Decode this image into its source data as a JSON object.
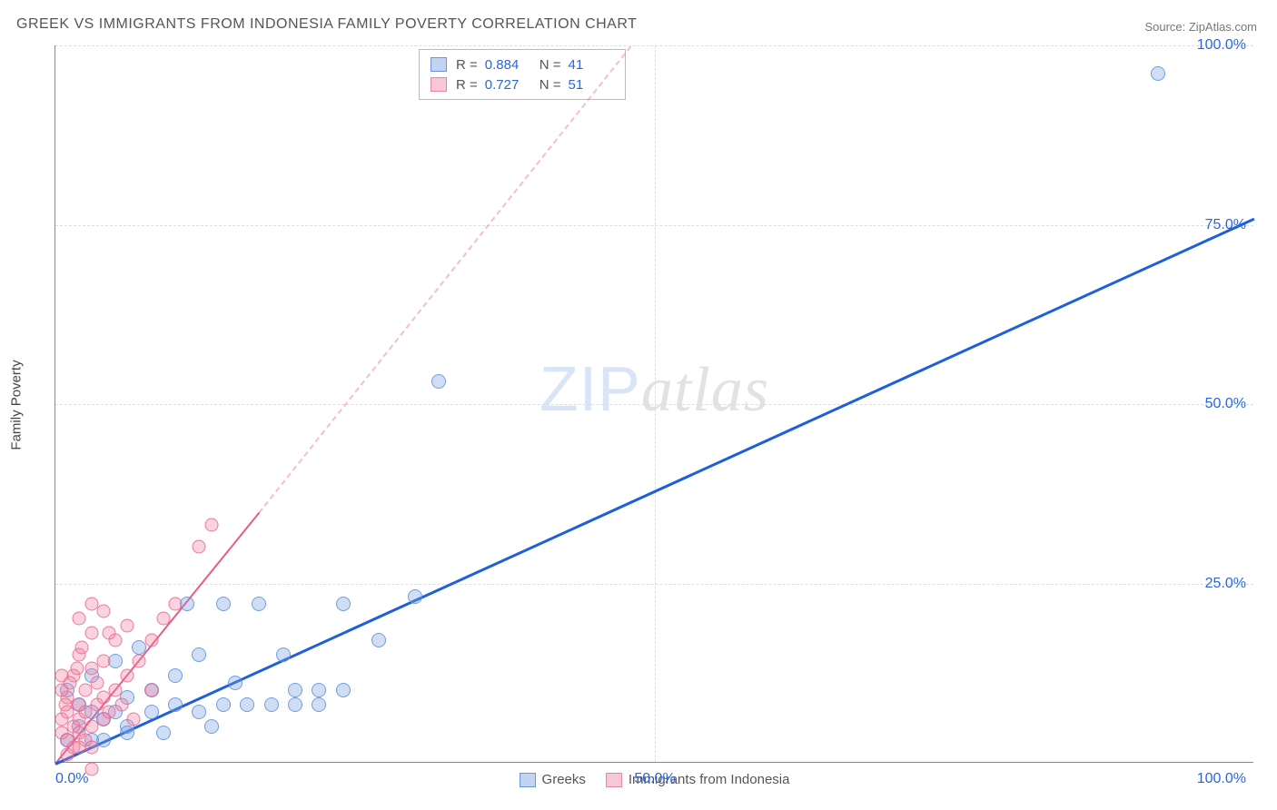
{
  "title": "GREEK VS IMMIGRANTS FROM INDONESIA FAMILY POVERTY CORRELATION CHART",
  "source": "Source: ZipAtlas.com",
  "ylabel": "Family Poverty",
  "watermark": {
    "left": "ZIP",
    "right": "atlas"
  },
  "chart": {
    "type": "scatter",
    "xlim": [
      0,
      100
    ],
    "ylim": [
      0,
      100
    ],
    "background_color": "#ffffff",
    "grid_color": "#dddddd",
    "grid_style": "dashed",
    "axis_color": "#888888",
    "xticks": [
      0,
      50,
      100
    ],
    "yticks": [
      25,
      50,
      75,
      100
    ],
    "xtick_labels": [
      "0.0%",
      "50.0%",
      "100.0%"
    ],
    "ytick_labels": [
      "25.0%",
      "50.0%",
      "75.0%",
      "100.0%"
    ],
    "tick_label_color": "#2b66d9",
    "tick_label_fontsize": 16,
    "marker_size": 16,
    "series": [
      {
        "name": "Greeks",
        "color_fill": "rgba(120,160,225,0.35)",
        "color_stroke": "rgba(90,140,215,0.8)",
        "trend_color": "#1f5fd9",
        "trend_width": 3,
        "trend": {
          "x1": 0,
          "y1": 0,
          "x2": 100,
          "y2": 76
        },
        "R": "0.884",
        "N": "41",
        "points": [
          [
            92,
            96
          ],
          [
            32,
            53
          ],
          [
            1,
            3
          ],
          [
            2,
            5
          ],
          [
            2,
            8
          ],
          [
            3,
            7
          ],
          [
            3,
            12
          ],
          [
            4,
            6
          ],
          [
            4,
            3
          ],
          [
            5,
            7
          ],
          [
            5,
            14
          ],
          [
            6,
            5
          ],
          [
            6,
            9
          ],
          [
            7,
            16
          ],
          [
            8,
            7
          ],
          [
            8,
            10
          ],
          [
            9,
            4
          ],
          [
            10,
            8
          ],
          [
            10,
            12
          ],
          [
            11,
            22
          ],
          [
            12,
            7
          ],
          [
            12,
            15
          ],
          [
            13,
            5
          ],
          [
            14,
            8
          ],
          [
            14,
            22
          ],
          [
            15,
            11
          ],
          [
            16,
            8
          ],
          [
            17,
            22
          ],
          [
            18,
            8
          ],
          [
            19,
            15
          ],
          [
            20,
            10
          ],
          [
            20,
            8
          ],
          [
            22,
            8
          ],
          [
            22,
            10
          ],
          [
            24,
            10
          ],
          [
            24,
            22
          ],
          [
            27,
            17
          ],
          [
            30,
            23
          ],
          [
            6,
            4
          ],
          [
            3,
            3
          ],
          [
            1,
            10
          ]
        ]
      },
      {
        "name": "Immigrants from Indonesia",
        "color_fill": "rgba(240,130,160,0.35)",
        "color_stroke": "rgba(230,100,140,0.8)",
        "trend_color": "#e85a87",
        "trend_width": 2.5,
        "trend_solid": {
          "x1": 0,
          "y1": 0,
          "x2": 17,
          "y2": 35
        },
        "trend_dash": {
          "x1": 17,
          "y1": 35,
          "x2": 48,
          "y2": 100
        },
        "R": "0.727",
        "N": "51",
        "points": [
          [
            0.5,
            4
          ],
          [
            0.5,
            6
          ],
          [
            1,
            3
          ],
          [
            1,
            7
          ],
          [
            1,
            9
          ],
          [
            1.5,
            5
          ],
          [
            1.5,
            12
          ],
          [
            2,
            4
          ],
          [
            2,
            6
          ],
          [
            2,
            8
          ],
          [
            2,
            15
          ],
          [
            2.5,
            7
          ],
          [
            2.5,
            10
          ],
          [
            3,
            5
          ],
          [
            3,
            13
          ],
          [
            3,
            18
          ],
          [
            3.5,
            8
          ],
          [
            3.5,
            11
          ],
          [
            4,
            6
          ],
          [
            4,
            9
          ],
          [
            4,
            14
          ],
          [
            4,
            21
          ],
          [
            4.5,
            7
          ],
          [
            5,
            10
          ],
          [
            5,
            17
          ],
          [
            5.5,
            8
          ],
          [
            6,
            12
          ],
          [
            6,
            19
          ],
          [
            6.5,
            6
          ],
          [
            7,
            14
          ],
          [
            8,
            17
          ],
          [
            8,
            10
          ],
          [
            9,
            20
          ],
          [
            10,
            22
          ],
          [
            12,
            30
          ],
          [
            13,
            33
          ],
          [
            1,
            1
          ],
          [
            1.5,
            2
          ],
          [
            2,
            2
          ],
          [
            2.5,
            3
          ],
          [
            3,
            2
          ],
          [
            3,
            -1
          ],
          [
            0.5,
            10
          ],
          [
            0.5,
            12
          ],
          [
            0.8,
            8
          ],
          [
            1.2,
            11
          ],
          [
            1.8,
            13
          ],
          [
            2.2,
            16
          ],
          [
            4.5,
            18
          ],
          [
            2,
            20
          ],
          [
            3,
            22
          ]
        ]
      }
    ]
  },
  "stats_legend": {
    "rows": [
      {
        "swatch": "blue",
        "R_label": "R =",
        "R": "0.884",
        "N_label": "N =",
        "N": "41"
      },
      {
        "swatch": "pink",
        "R_label": "R =",
        "R": "0.727",
        "N_label": "N =",
        "N": "51"
      }
    ]
  },
  "bottom_legend": {
    "items": [
      {
        "swatch": "blue",
        "label": "Greeks"
      },
      {
        "swatch": "pink",
        "label": "Immigrants from Indonesia"
      }
    ]
  }
}
